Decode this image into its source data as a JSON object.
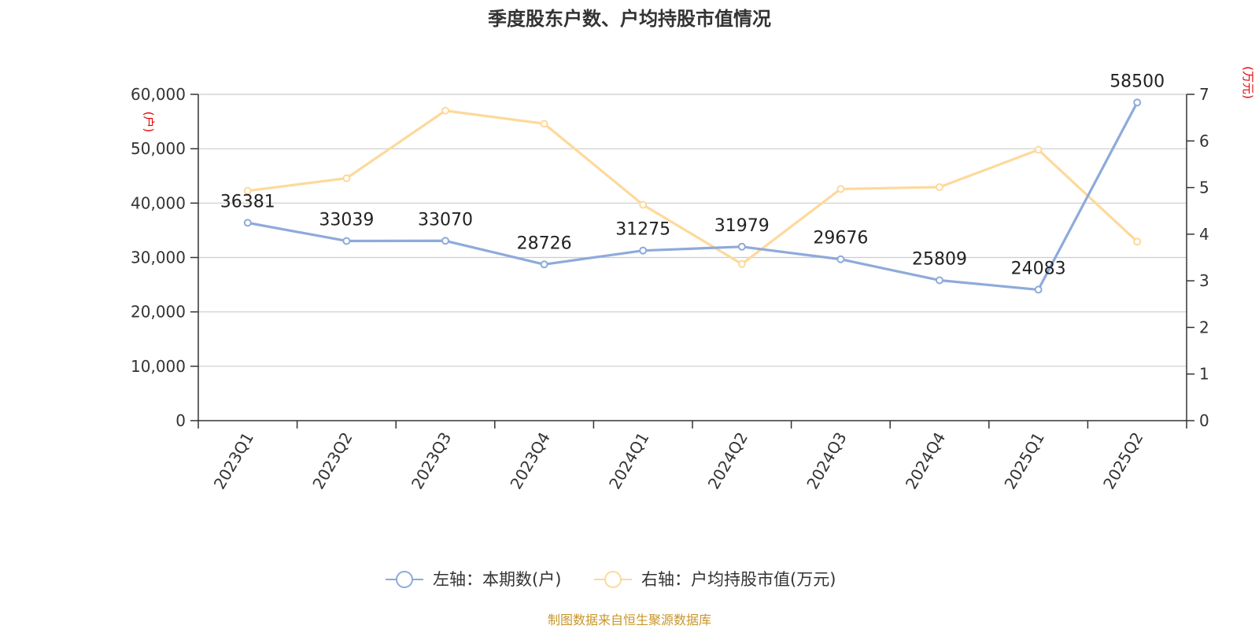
{
  "colors": {
    "left_series": "#8eaadb",
    "right_series": "#fdd99b",
    "unit_text": "#e60000",
    "source_text": "#c8962a",
    "axis": "#333333",
    "grid": "#cccccc"
  },
  "chart_data": {
    "type": "line",
    "title": "季度股东户数、户均持股市值情况",
    "categories": [
      "2023Q1",
      "2023Q2",
      "2023Q3",
      "2023Q4",
      "2024Q1",
      "2024Q2",
      "2024Q3",
      "2024Q4",
      "2025Q1",
      "2025Q2"
    ],
    "left_axis": {
      "unit": "(户)",
      "ylim": [
        0,
        60000
      ],
      "ticks": [
        "0",
        "10,000",
        "20,000",
        "30,000",
        "40,000",
        "50,000",
        "60,000"
      ]
    },
    "right_axis": {
      "unit": "(万元)",
      "ylim": [
        0,
        7
      ],
      "ticks": [
        "0",
        "1",
        "2",
        "3",
        "4",
        "5",
        "6",
        "7"
      ]
    },
    "series": [
      {
        "name": "左轴：本期数(户)",
        "axis": "left",
        "values": [
          36381,
          33039,
          33070,
          28726,
          31275,
          31979,
          29676,
          25809,
          24083,
          58500
        ],
        "data_labels": [
          "36381",
          "33039",
          "33070",
          "28726",
          "31275",
          "31979",
          "29676",
          "25809",
          "24083",
          "58500"
        ]
      },
      {
        "name": "右轴：户均持股市值(万元)",
        "axis": "right",
        "values": [
          4.93,
          5.2,
          6.65,
          6.37,
          4.63,
          3.36,
          4.97,
          5.01,
          5.81,
          3.84
        ]
      }
    ],
    "grid": true,
    "legend_position": "bottom-center",
    "source": "制图数据来自恒生聚源数据库"
  }
}
